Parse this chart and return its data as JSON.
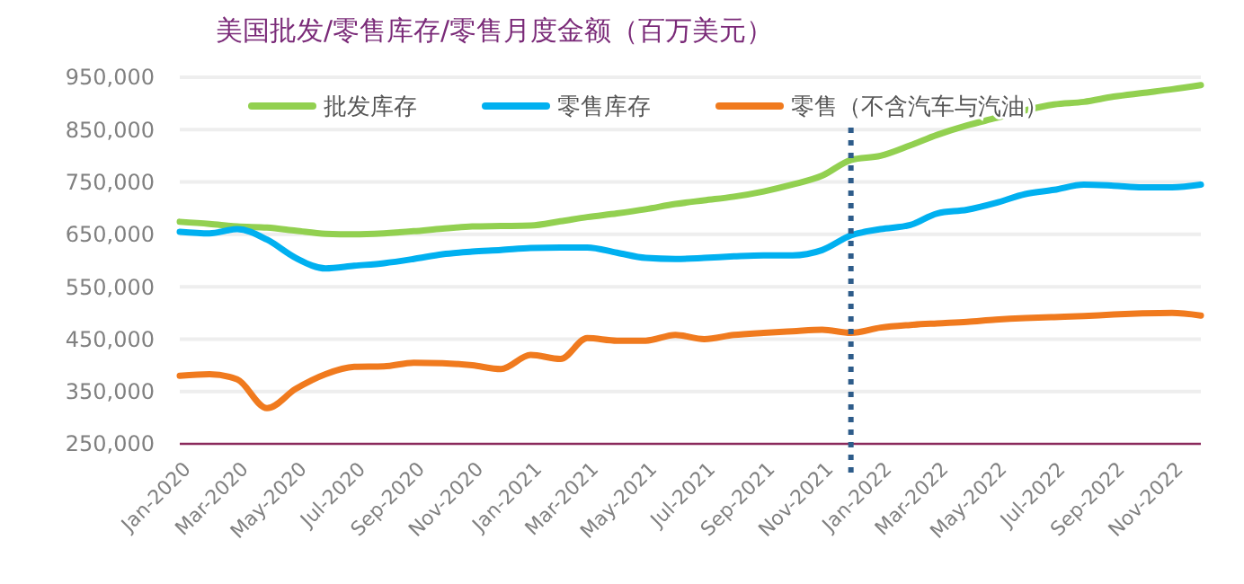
{
  "chart_data": {
    "type": "line",
    "title": "美国批发/零售库存/零售月度金额（百万美元）",
    "x": [
      "2020-01",
      "2020-02",
      "2020-03",
      "2020-04",
      "2020-05",
      "2020-06",
      "2020-07",
      "2020-08",
      "2020-09",
      "2020-10",
      "2020-11",
      "2020-12",
      "2021-01",
      "2021-02",
      "2021-03",
      "2021-04",
      "2021-05",
      "2021-06",
      "2021-07",
      "2021-08",
      "2021-09",
      "2021-10",
      "2021-11",
      "2021-12",
      "2022-01",
      "2022-02",
      "2022-03",
      "2022-04",
      "2022-05",
      "2022-06",
      "2022-07",
      "2022-08",
      "2022-09",
      "2022-10",
      "2022-11",
      "2022-12"
    ],
    "series": [
      {
        "name": "批发库存",
        "color": "#92d050",
        "values": [
          674000,
          670000,
          665000,
          663000,
          657000,
          651000,
          650000,
          652000,
          656000,
          661000,
          665000,
          666000,
          667000,
          675000,
          683000,
          690000,
          698000,
          708000,
          715000,
          722000,
          732000,
          745000,
          762000,
          792000,
          800000,
          820000,
          840000,
          858000,
          872000,
          887000,
          898000,
          903000,
          913000,
          920000,
          927000,
          935000
        ]
      },
      {
        "name": "零售库存",
        "color": "#00b0f0",
        "values": [
          655000,
          652000,
          660000,
          640000,
          605000,
          585000,
          590000,
          595000,
          603000,
          612000,
          617000,
          620000,
          624000,
          625000,
          625000,
          615000,
          605000,
          603000,
          605000,
          608000,
          610000,
          610000,
          620000,
          648000,
          660000,
          668000,
          690000,
          697000,
          710000,
          727000,
          735000,
          745000,
          743000,
          740000,
          740000,
          745000
        ]
      },
      {
        "name": "零售（不含汽车与汽油）",
        "color": "#f07a1e",
        "values": [
          380000,
          383000,
          373000,
          318000,
          355000,
          383000,
          397000,
          398000,
          405000,
          404000,
          400000,
          393000,
          420000,
          412000,
          452000,
          447000,
          447000,
          458000,
          450000,
          458000,
          462000,
          465000,
          468000,
          462000,
          472000,
          477000,
          480000,
          483000,
          487000,
          490000,
          492000,
          494000,
          497000,
          499000,
          500000,
          495000
        ]
      }
    ],
    "xlim": [
      "2020-01",
      "2022-12"
    ],
    "xticks": [
      {
        "value": "2020-01",
        "label": "Jan-2020"
      },
      {
        "value": "2020-03",
        "label": "Mar-2020"
      },
      {
        "value": "2020-05",
        "label": "May-2020"
      },
      {
        "value": "2020-07",
        "label": "Jul-2020"
      },
      {
        "value": "2020-09",
        "label": "Sep-2020"
      },
      {
        "value": "2020-11",
        "label": "Nov-2020"
      },
      {
        "value": "2021-01",
        "label": "Jan-2021"
      },
      {
        "value": "2021-03",
        "label": "Mar-2021"
      },
      {
        "value": "2021-05",
        "label": "May-2021"
      },
      {
        "value": "2021-07",
        "label": "Jul-2021"
      },
      {
        "value": "2021-09",
        "label": "Sep-2021"
      },
      {
        "value": "2021-11",
        "label": "Nov-2021"
      },
      {
        "value": "2022-01",
        "label": "Jan-2022"
      },
      {
        "value": "2022-03",
        "label": "Mar-2022"
      },
      {
        "value": "2022-05",
        "label": "May-2022"
      },
      {
        "value": "2022-07",
        "label": "Jul-2022"
      },
      {
        "value": "2022-09",
        "label": "Sep-2022"
      },
      {
        "value": "2022-11",
        "label": "Nov-2022"
      }
    ],
    "ylim": [
      250000,
      950000
    ],
    "yticks": [
      {
        "value": 250000,
        "label": "250,000"
      },
      {
        "value": 350000,
        "label": "350,000"
      },
      {
        "value": 450000,
        "label": "450,000"
      },
      {
        "value": 550000,
        "label": "550,000"
      },
      {
        "value": 650000,
        "label": "650,000"
      },
      {
        "value": 750000,
        "label": "750,000"
      },
      {
        "value": 850000,
        "label": "850,000"
      },
      {
        "value": 950000,
        "label": "950,000"
      }
    ],
    "grid": "y",
    "legend": "top",
    "marker": "none",
    "line_style": "solid",
    "ref_lines": [
      {
        "axis": "x",
        "value": "2021-12",
        "color": "#2e5c8a",
        "line_style": "dotted"
      }
    ]
  }
}
